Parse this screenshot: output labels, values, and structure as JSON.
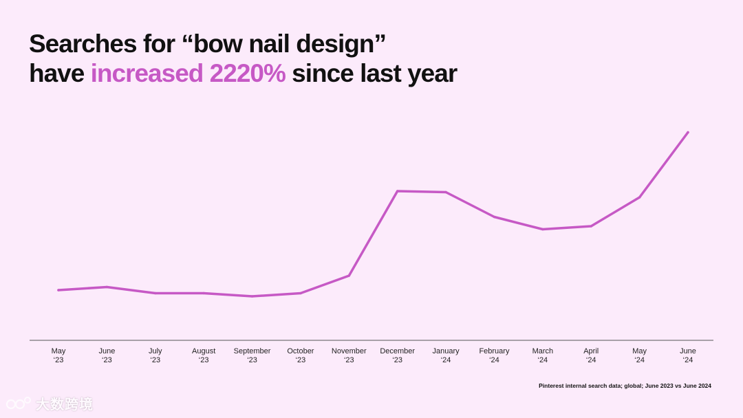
{
  "title": {
    "line1": "Searches for “bow nail design”",
    "line2_prefix": "have ",
    "line2_accent": "increased 2220%",
    "line2_suffix": " since last year"
  },
  "source_note": "Pinterest internal search data; global; June 2023 vs June 2024",
  "watermark": {
    "text": "大数跨境",
    "icon": "logo-icon"
  },
  "colors": {
    "background": "#fcebfb",
    "accent": "#c659c5",
    "text": "#111111",
    "axis": "#555555"
  },
  "chart_data": {
    "type": "line",
    "title": "Searches for “bow nail design” have increased 2220% since last year",
    "xlabel": "",
    "ylabel": "",
    "grid": false,
    "legend": "none",
    "categories": [
      [
        "May",
        "‘23"
      ],
      [
        "June",
        "‘23"
      ],
      [
        "July",
        "‘23"
      ],
      [
        "August",
        "‘23"
      ],
      [
        "September",
        "‘23"
      ],
      [
        "October",
        "‘23"
      ],
      [
        "November",
        "‘23"
      ],
      [
        "December",
        "‘23"
      ],
      [
        "January",
        "‘24"
      ],
      [
        "February",
        "‘24"
      ],
      [
        "March",
        "‘24"
      ],
      [
        "April",
        "‘24"
      ],
      [
        "May",
        "‘24"
      ],
      [
        "June",
        "‘24"
      ]
    ],
    "ylim": [
      0,
      100
    ],
    "series": [
      {
        "name": "bow nail design searches",
        "values": [
          21,
          22.5,
          19.5,
          19.5,
          18,
          19.5,
          28,
          69,
          68.5,
          56.5,
          50.5,
          52,
          66,
          97.5
        ]
      }
    ]
  }
}
